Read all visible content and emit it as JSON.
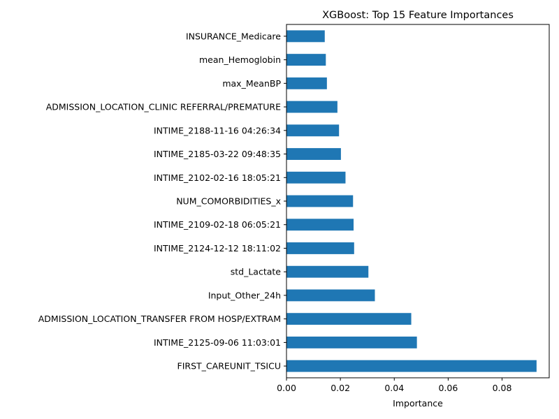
{
  "chart_data": {
    "type": "bar",
    "orientation": "horizontal",
    "title": "XGBoost: Top 15 Feature Importances",
    "xlabel": "Importance",
    "ylabel": "",
    "xlim": [
      0,
      0.0975
    ],
    "xticks": [
      0,
      0.02,
      0.04,
      0.06,
      0.08
    ],
    "xtick_labels": [
      "0.00",
      "0.02",
      "0.04",
      "0.06",
      "0.08"
    ],
    "grid": false,
    "bar_color": "#1f77b4",
    "categories": [
      "FIRST_CAREUNIT_TSICU",
      "INTIME_2125-09-06 11:03:01",
      "ADMISSION_LOCATION_TRANSFER FROM HOSP/EXTRAM",
      "Input_Other_24h",
      "std_Lactate",
      "INTIME_2124-12-12 18:11:02",
      "INTIME_2109-02-18 06:05:21",
      "NUM_COMORBIDITIES_x",
      "INTIME_2102-02-16 18:05:21",
      "INTIME_2185-03-22 09:48:35",
      "INTIME_2188-11-16 04:26:34",
      "ADMISSION_LOCATION_CLINIC REFERRAL/PREMATURE",
      "max_MeanBP",
      "mean_Hemoglobin",
      "INSURANCE_Medicare"
    ],
    "values": [
      0.0928,
      0.0484,
      0.0463,
      0.0328,
      0.0304,
      0.0251,
      0.0249,
      0.0247,
      0.0219,
      0.0202,
      0.0195,
      0.0189,
      0.015,
      0.0146,
      0.0142
    ]
  }
}
